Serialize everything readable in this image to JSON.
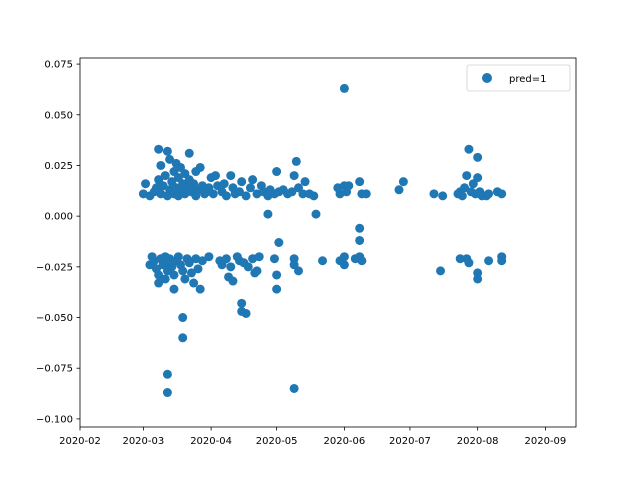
{
  "chart_data": {
    "type": "scatter",
    "title": "",
    "xlabel": "",
    "ylabel": "",
    "x_axis_type": "date",
    "xlim": [
      "2020-02-01",
      "2020-09-15"
    ],
    "ylim": [
      -0.104,
      0.078
    ],
    "x_ticks": [
      "2020-02-01",
      "2020-03-01",
      "2020-04-01",
      "2020-05-01",
      "2020-06-01",
      "2020-07-01",
      "2020-08-01",
      "2020-09-01"
    ],
    "x_tick_labels": [
      "2020-02",
      "2020-03",
      "2020-04",
      "2020-05",
      "2020-06",
      "2020-07",
      "2020-08",
      "2020-09"
    ],
    "y_ticks": [
      0.075,
      0.05,
      0.025,
      0.0,
      -0.025,
      -0.05,
      -0.075,
      -0.1
    ],
    "y_tick_labels": [
      "0.075",
      "0.050",
      "0.025",
      "0.000",
      "−0.025",
      "−0.050",
      "−0.075",
      "−0.100"
    ],
    "grid": false,
    "legend": {
      "position": "top-right"
    },
    "series": [
      {
        "name": "pred=1",
        "color": "#1f77b4",
        "points": [
          [
            "2020-03-01",
            0.011
          ],
          [
            "2020-03-02",
            0.016
          ],
          [
            "2020-03-04",
            0.01
          ],
          [
            "2020-03-06",
            0.012
          ],
          [
            "2020-03-07",
            0.014
          ],
          [
            "2020-03-08",
            0.018
          ],
          [
            "2020-03-08",
            0.033
          ],
          [
            "2020-03-09",
            0.025
          ],
          [
            "2020-03-09",
            0.011
          ],
          [
            "2020-03-10",
            0.015
          ],
          [
            "2020-03-11",
            0.02
          ],
          [
            "2020-03-12",
            0.032
          ],
          [
            "2020-03-12",
            0.01
          ],
          [
            "2020-03-13",
            0.028
          ],
          [
            "2020-03-13",
            0.013
          ],
          [
            "2020-03-14",
            0.017
          ],
          [
            "2020-03-15",
            0.022
          ],
          [
            "2020-03-15",
            0.011
          ],
          [
            "2020-03-16",
            0.026
          ],
          [
            "2020-03-16",
            0.014
          ],
          [
            "2020-03-17",
            0.019
          ],
          [
            "2020-03-17",
            0.01
          ],
          [
            "2020-03-18",
            0.024
          ],
          [
            "2020-03-18",
            0.012
          ],
          [
            "2020-03-19",
            0.016
          ],
          [
            "2020-03-20",
            0.021
          ],
          [
            "2020-03-20",
            0.011
          ],
          [
            "2020-03-21",
            0.014
          ],
          [
            "2020-03-22",
            0.018
          ],
          [
            "2020-03-22",
            0.031
          ],
          [
            "2020-03-23",
            0.012
          ],
          [
            "2020-03-24",
            0.016
          ],
          [
            "2020-03-25",
            0.022
          ],
          [
            "2020-03-25",
            0.01
          ],
          [
            "2020-03-26",
            0.013
          ],
          [
            "2020-03-27",
            0.024
          ],
          [
            "2020-03-28",
            0.015
          ],
          [
            "2020-03-29",
            0.011
          ],
          [
            "2020-03-30",
            0.012
          ],
          [
            "2020-03-31",
            0.014
          ],
          [
            "2020-04-01",
            0.019
          ],
          [
            "2020-04-02",
            0.011
          ],
          [
            "2020-04-03",
            0.02
          ],
          [
            "2020-04-04",
            0.015
          ],
          [
            "2020-04-06",
            0.012
          ],
          [
            "2020-04-07",
            0.016
          ],
          [
            "2020-04-08",
            0.01
          ],
          [
            "2020-04-10",
            0.02
          ],
          [
            "2020-04-11",
            0.014
          ],
          [
            "2020-04-12",
            0.011
          ],
          [
            "2020-04-14",
            0.012
          ],
          [
            "2020-04-15",
            0.017
          ],
          [
            "2020-04-17",
            0.01
          ],
          [
            "2020-04-19",
            0.014
          ],
          [
            "2020-04-20",
            0.018
          ],
          [
            "2020-04-22",
            0.011
          ],
          [
            "2020-04-24",
            0.015
          ],
          [
            "2020-04-25",
            0.012
          ],
          [
            "2020-04-27",
            0.01
          ],
          [
            "2020-04-28",
            0.013
          ],
          [
            "2020-04-30",
            0.011
          ],
          [
            "2020-05-01",
            0.022
          ],
          [
            "2020-05-02",
            0.012
          ],
          [
            "2020-05-04",
            0.013
          ],
          [
            "2020-05-06",
            0.011
          ],
          [
            "2020-05-08",
            0.012
          ],
          [
            "2020-05-09",
            0.02
          ],
          [
            "2020-05-10",
            0.027
          ],
          [
            "2020-05-11",
            0.014
          ],
          [
            "2020-05-13",
            0.011
          ],
          [
            "2020-05-14",
            0.017
          ],
          [
            "2020-05-16",
            0.011
          ],
          [
            "2020-05-18",
            0.01
          ],
          [
            "2020-05-29",
            0.014
          ],
          [
            "2020-05-30",
            0.011
          ],
          [
            "2020-06-01",
            0.015
          ],
          [
            "2020-06-02",
            0.012
          ],
          [
            "2020-06-03",
            0.015
          ],
          [
            "2020-06-08",
            0.017
          ],
          [
            "2020-06-09",
            0.011
          ],
          [
            "2020-06-11",
            0.011
          ],
          [
            "2020-06-26",
            0.013
          ],
          [
            "2020-06-28",
            0.017
          ],
          [
            "2020-07-12",
            0.011
          ],
          [
            "2020-07-16",
            0.01
          ],
          [
            "2020-07-23",
            0.011
          ],
          [
            "2020-07-24",
            0.012
          ],
          [
            "2020-07-25",
            0.01
          ],
          [
            "2020-07-26",
            0.014
          ],
          [
            "2020-07-27",
            0.02
          ],
          [
            "2020-07-28",
            0.033
          ],
          [
            "2020-07-29",
            0.012
          ],
          [
            "2020-07-30",
            0.016
          ],
          [
            "2020-07-31",
            0.011
          ],
          [
            "2020-08-01",
            0.019
          ],
          [
            "2020-08-01",
            0.029
          ],
          [
            "2020-08-02",
            0.012
          ],
          [
            "2020-08-03",
            0.01
          ],
          [
            "2020-08-05",
            0.01
          ],
          [
            "2020-08-06",
            0.011
          ],
          [
            "2020-08-10",
            0.012
          ],
          [
            "2020-08-12",
            0.011
          ],
          [
            "2020-06-01",
            0.063
          ],
          [
            "2020-04-27",
            0.001
          ],
          [
            "2020-05-19",
            0.001
          ],
          [
            "2020-05-02",
            -0.013
          ],
          [
            "2020-06-08",
            -0.006
          ],
          [
            "2020-06-08",
            -0.012
          ],
          [
            "2020-03-04",
            -0.024
          ],
          [
            "2020-03-05",
            -0.02
          ],
          [
            "2020-03-06",
            -0.022
          ],
          [
            "2020-03-07",
            -0.026
          ],
          [
            "2020-03-08",
            -0.029
          ],
          [
            "2020-03-08",
            -0.033
          ],
          [
            "2020-03-09",
            -0.021
          ],
          [
            "2020-03-10",
            -0.024
          ],
          [
            "2020-03-11",
            -0.02
          ],
          [
            "2020-03-11",
            -0.031
          ],
          [
            "2020-03-12",
            -0.023
          ],
          [
            "2020-03-12",
            -0.027
          ],
          [
            "2020-03-13",
            -0.021
          ],
          [
            "2020-03-14",
            -0.025
          ],
          [
            "2020-03-15",
            -0.029
          ],
          [
            "2020-03-15",
            -0.036
          ],
          [
            "2020-03-16",
            -0.022
          ],
          [
            "2020-03-17",
            -0.02
          ],
          [
            "2020-03-18",
            -0.024
          ],
          [
            "2020-03-19",
            -0.027
          ],
          [
            "2020-03-20",
            -0.031
          ],
          [
            "2020-03-21",
            -0.021
          ],
          [
            "2020-03-22",
            -0.023
          ],
          [
            "2020-03-23",
            -0.028
          ],
          [
            "2020-03-24",
            -0.033
          ],
          [
            "2020-03-25",
            -0.021
          ],
          [
            "2020-03-26",
            -0.026
          ],
          [
            "2020-03-27",
            -0.036
          ],
          [
            "2020-03-28",
            -0.022
          ],
          [
            "2020-03-31",
            -0.02
          ],
          [
            "2020-03-19",
            -0.05
          ],
          [
            "2020-03-19",
            -0.06
          ],
          [
            "2020-03-12",
            -0.078
          ],
          [
            "2020-03-12",
            -0.087
          ],
          [
            "2020-04-05",
            -0.022
          ],
          [
            "2020-04-06",
            -0.024
          ],
          [
            "2020-04-08",
            -0.021
          ],
          [
            "2020-04-09",
            -0.03
          ],
          [
            "2020-04-10",
            -0.025
          ],
          [
            "2020-04-11",
            -0.032
          ],
          [
            "2020-04-13",
            -0.02
          ],
          [
            "2020-04-14",
            -0.022
          ],
          [
            "2020-04-15",
            -0.043
          ],
          [
            "2020-04-15",
            -0.047
          ],
          [
            "2020-04-16",
            -0.023
          ],
          [
            "2020-04-17",
            -0.048
          ],
          [
            "2020-04-18",
            -0.025
          ],
          [
            "2020-04-20",
            -0.021
          ],
          [
            "2020-04-21",
            -0.028
          ],
          [
            "2020-04-22",
            -0.027
          ],
          [
            "2020-04-23",
            -0.02
          ],
          [
            "2020-04-30",
            -0.021
          ],
          [
            "2020-05-01",
            -0.029
          ],
          [
            "2020-05-01",
            -0.036
          ],
          [
            "2020-05-09",
            -0.021
          ],
          [
            "2020-05-09",
            -0.024
          ],
          [
            "2020-05-11",
            -0.027
          ],
          [
            "2020-05-09",
            -0.085
          ],
          [
            "2020-05-22",
            -0.022
          ],
          [
            "2020-05-30",
            -0.022
          ],
          [
            "2020-06-01",
            -0.02
          ],
          [
            "2020-06-01",
            -0.024
          ],
          [
            "2020-06-06",
            -0.021
          ],
          [
            "2020-06-08",
            -0.02
          ],
          [
            "2020-06-09",
            -0.022
          ],
          [
            "2020-07-15",
            -0.027
          ],
          [
            "2020-07-24",
            -0.021
          ],
          [
            "2020-07-27",
            -0.021
          ],
          [
            "2020-07-28",
            -0.023
          ],
          [
            "2020-08-01",
            -0.028
          ],
          [
            "2020-08-01",
            -0.031
          ],
          [
            "2020-08-06",
            -0.022
          ],
          [
            "2020-08-12",
            -0.02
          ],
          [
            "2020-08-12",
            -0.022
          ]
        ]
      }
    ]
  }
}
